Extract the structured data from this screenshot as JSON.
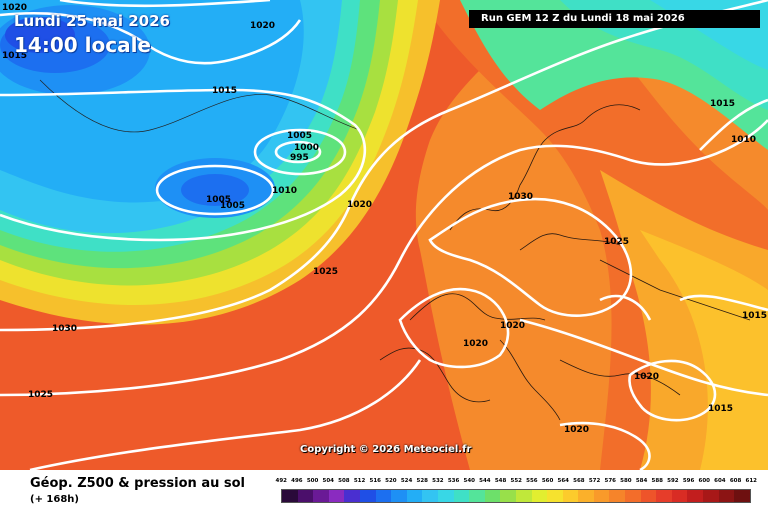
{
  "map": {
    "date_label": "Lundi 25 mai 2026",
    "time_label": "14:00 locale",
    "run_label": "Run GEM 12 Z du Lundi 18 mai 2026",
    "copyright": "Copyright © 2026 Meteociel.fr",
    "product_title": "Géop. Z500 & pression au sol",
    "forecast_step": "(+ 168h)",
    "isobar_labels": [
      "1020",
      "1015",
      "1020",
      "1015",
      "1005",
      "1000",
      "995",
      "1010",
      "1005",
      "1005",
      "1020",
      "1025",
      "1030",
      "1030",
      "1025",
      "1025",
      "1020",
      "1020",
      "1015",
      "1010",
      "1015",
      "1025",
      "1020",
      "1015",
      "1020",
      "1030",
      "1025",
      "1020"
    ]
  },
  "legend": {
    "levels": [
      "492",
      "496",
      "500",
      "504",
      "508",
      "512",
      "516",
      "520",
      "524",
      "528",
      "532",
      "536",
      "540",
      "544",
      "548",
      "552",
      "556",
      "560",
      "564",
      "568",
      "572",
      "576",
      "580",
      "584",
      "588",
      "592",
      "596",
      "600",
      "604",
      "608",
      "612"
    ],
    "colors": [
      "#2a0a3a",
      "#4b0f6b",
      "#6a1a96",
      "#8a2bc0",
      "#4a2fd0",
      "#1f4fe6",
      "#1c6ff0",
      "#1e90f5",
      "#23aef6",
      "#33c4f2",
      "#38d7e6",
      "#3fe0c6",
      "#54e49a",
      "#6de06a",
      "#98e04a",
      "#c0e83a",
      "#e2ee30",
      "#f6e22e",
      "#fccb2c",
      "#fbb02a",
      "#f99a2a",
      "#f6842a",
      "#f36d2a",
      "#ee542a",
      "#e63d2a",
      "#d92c24",
      "#c21e1e",
      "#a81818",
      "#8c1414",
      "#6e1010"
    ]
  }
}
